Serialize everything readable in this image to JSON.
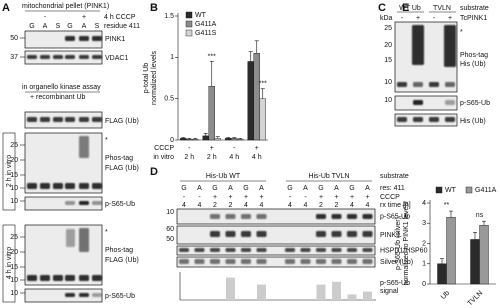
{
  "A": {
    "label": "A",
    "title": "mitochondrial pellet (PINK1)",
    "cccp_signs": [
      "-",
      "+"
    ],
    "cccp": "4 h CCCP",
    "residue": "residue 411",
    "lanes": [
      "G",
      "A",
      "S",
      "G",
      "A",
      "S"
    ],
    "blots": [
      {
        "marker": "50",
        "label": "PINK1"
      },
      {
        "marker": "37",
        "label": "VDAC1"
      }
    ],
    "assay": "in organello kinase assay",
    "assay_sub": "+ recombinant Ub",
    "flag": "FLAG (Ub)",
    "sections": [
      {
        "time": "2 h in vitro",
        "markers": [
          "25",
          "20",
          "15",
          "10"
        ],
        "star": "*",
        "phos": "Phos-tag",
        "phos_sub": "FLAG (Ub)",
        "p_marker": "10",
        "p_label": "p-S65-Ub"
      },
      {
        "time": "4 h in vitro",
        "markers": [
          "25",
          "20",
          "15",
          "10"
        ],
        "star": "*",
        "phos": "Phos-tag",
        "phos_sub": "FLAG (Ub)",
        "p_marker": "10",
        "p_label": "p-S65-Ub"
      }
    ]
  },
  "C": {
    "label": "C",
    "groups": [
      "WT Ub",
      "TVLN"
    ],
    "kda": "kDa",
    "signs": [
      "-",
      "+",
      "-",
      "+"
    ],
    "substrate": "substrate",
    "substrate_name": "TcPINK1",
    "markers": [
      "25",
      "20",
      "15",
      "10"
    ],
    "star": "*",
    "phos": "Phos-tag",
    "phos_sub": "His (Ub)",
    "p_marker": "10",
    "p_label": "p-S65-Ub",
    "his": "His (Ub)"
  },
  "D": {
    "label": "D",
    "groups": [
      "His-Ub WT",
      "His-Ub TVLN"
    ],
    "substrate": "substrate",
    "res": "res: 411",
    "lanes": [
      "G",
      "A",
      "G",
      "A",
      "G",
      "A",
      "G",
      "A",
      "G",
      "A",
      "G",
      "A"
    ],
    "cccp_label": "CCCP",
    "cccp": [
      "-",
      "-",
      "+",
      "+",
      "+",
      "+",
      "-",
      "-",
      "+",
      "+",
      "+",
      "+"
    ],
    "rx_label": "rx time [h]",
    "rx": [
      "4",
      "4",
      "2",
      "2",
      "4",
      "4",
      "4",
      "4",
      "2",
      "2",
      "4",
      "4"
    ],
    "blots": [
      {
        "markers": [
          "10"
        ],
        "label": "p-S65-Ub"
      },
      {
        "markers": [
          "60",
          "50"
        ],
        "label": "PINK1"
      },
      {
        "markers": [],
        "label": "HSPD1/HSP60"
      },
      {
        "markers": [],
        "label": "Silver (Ub)"
      }
    ]
  },
  "chart_data": [
    {
      "type": "bar",
      "label": "B",
      "ylabel": [
        "p-total Ub",
        "normalized levels"
      ],
      "categories": [
        "2 h",
        "2 h",
        "4 h",
        "4 h"
      ],
      "row_labels": [
        "CCCP",
        "in vitro"
      ],
      "cccp": [
        "-",
        "+",
        "-",
        "+"
      ],
      "series": [
        {
          "name": "WT",
          "color": "#2b2b2b",
          "values": [
            0.02,
            0.05,
            0.02,
            0.95
          ],
          "errors": [
            0.01,
            0.03,
            0.01,
            0.12
          ]
        },
        {
          "name": "G411A",
          "color": "#8c8c8c",
          "values": [
            0.01,
            0.65,
            0.02,
            1.05
          ],
          "errors": [
            0.01,
            0.3,
            0.01,
            0.15
          ],
          "sig": [
            null,
            "***",
            null,
            null
          ]
        },
        {
          "name": "G411S",
          "color": "#d4d4d4",
          "values": [
            0.01,
            0.02,
            0.01,
            0.5
          ],
          "errors": [
            0.01,
            0.02,
            0.01,
            0.12
          ],
          "sig": [
            null,
            null,
            null,
            "***"
          ]
        }
      ],
      "ylim": [
        0,
        1.5
      ],
      "yticks": [
        0,
        0.5,
        1,
        1.5
      ]
    },
    {
      "type": "bar",
      "label": "E",
      "ylabel": [
        "p-S65-Ub (silver)",
        "normalized to PINK1 levels"
      ],
      "categories": [
        "Ub",
        "TVLN"
      ],
      "group_labels": [
        "**",
        "ns"
      ],
      "series": [
        {
          "name": "WT",
          "color": "#2b2b2b",
          "values": [
            1.0,
            2.2
          ],
          "errors": [
            0.25,
            0.35
          ]
        },
        {
          "name": "G411A",
          "color": "#999999",
          "values": [
            3.3,
            2.9
          ],
          "errors": [
            0.3,
            0.2
          ]
        }
      ],
      "ylim": [
        0,
        4
      ],
      "yticks": [
        0,
        1,
        2,
        3,
        4
      ]
    },
    {
      "type": "bar",
      "ylabel_right": [
        "p-S65-Ub",
        "signal"
      ],
      "color": "#cccccc",
      "values": [
        0,
        0,
        0,
        0.8,
        0,
        0.55,
        0,
        0,
        0.55,
        0.65,
        0.2,
        0.3
      ],
      "ylim": [
        0,
        1
      ]
    }
  ]
}
